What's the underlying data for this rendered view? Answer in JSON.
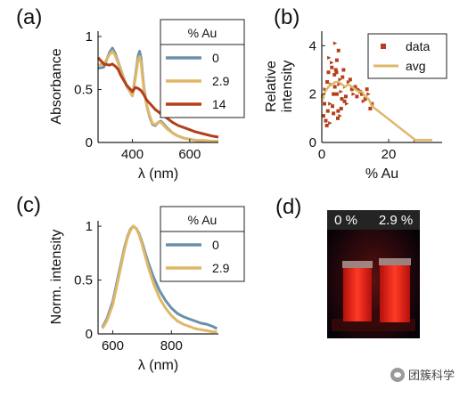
{
  "chart_data": [
    {
      "panel": "(a)",
      "type": "line",
      "xlabel": "λ (nm)",
      "ylabel": "Absorbance",
      "xlim": [
        280,
        700
      ],
      "ylim": [
        0,
        1.05
      ],
      "xticks": [
        400,
        600
      ],
      "yticks": [
        0,
        0.5,
        1
      ],
      "legend": {
        "title": "% Au",
        "placement": "top-right"
      },
      "series": [
        {
          "name": "0",
          "color": "#6a90ab",
          "x": [
            280,
            300,
            320,
            330,
            340,
            350,
            360,
            380,
            400,
            410,
            420,
            425,
            430,
            440,
            450,
            460,
            470,
            480,
            490,
            500,
            510,
            520,
            540,
            560,
            580,
            600,
            620,
            650,
            680,
            700
          ],
          "y": [
            0.7,
            0.71,
            0.85,
            0.89,
            0.84,
            0.76,
            0.68,
            0.53,
            0.44,
            0.62,
            0.82,
            0.86,
            0.8,
            0.52,
            0.35,
            0.24,
            0.17,
            0.16,
            0.19,
            0.2,
            0.17,
            0.14,
            0.09,
            0.06,
            0.04,
            0.03,
            0.02,
            0.01,
            0.01,
            0.01
          ]
        },
        {
          "name": "2.9",
          "color": "#e0b767",
          "x": [
            280,
            300,
            320,
            330,
            340,
            350,
            360,
            380,
            400,
            410,
            420,
            425,
            430,
            440,
            450,
            460,
            470,
            480,
            490,
            500,
            510,
            520,
            540,
            560,
            580,
            600,
            620,
            650,
            680,
            700
          ],
          "y": [
            0.73,
            0.74,
            0.83,
            0.86,
            0.82,
            0.75,
            0.67,
            0.53,
            0.44,
            0.6,
            0.78,
            0.81,
            0.76,
            0.5,
            0.35,
            0.25,
            0.18,
            0.17,
            0.19,
            0.19,
            0.16,
            0.13,
            0.09,
            0.06,
            0.04,
            0.03,
            0.02,
            0.02,
            0.01,
            0.01
          ]
        },
        {
          "name": "14",
          "color": "#b2401b",
          "x": [
            280,
            300,
            320,
            330,
            340,
            350,
            360,
            380,
            400,
            410,
            420,
            425,
            430,
            440,
            450,
            460,
            470,
            480,
            490,
            500,
            510,
            520,
            540,
            560,
            580,
            600,
            620,
            650,
            680,
            700
          ],
          "y": [
            0.8,
            0.74,
            0.73,
            0.74,
            0.72,
            0.69,
            0.63,
            0.54,
            0.48,
            0.52,
            0.51,
            0.5,
            0.49,
            0.45,
            0.4,
            0.37,
            0.34,
            0.31,
            0.29,
            0.27,
            0.25,
            0.23,
            0.19,
            0.16,
            0.14,
            0.12,
            0.1,
            0.08,
            0.06,
            0.05
          ]
        }
      ]
    },
    {
      "panel": "(b)",
      "type": "scatter",
      "xlabel": "% Au",
      "ylabel": "Relative intensity",
      "xlim": [
        0,
        36
      ],
      "ylim": [
        0,
        4.6
      ],
      "xticks": [
        0,
        20
      ],
      "yticks": [
        0,
        2,
        4
      ],
      "legend": {
        "placement": "top-right",
        "entries": [
          "data",
          "avg"
        ]
      },
      "series": [
        {
          "name": "data",
          "marker": "square",
          "color": "#b2401b",
          "x": [
            0.5,
            1.0,
            1.5,
            2.0,
            2.5,
            3.0,
            3.5,
            4.0,
            4.5,
            5.0,
            5.5,
            6.0,
            6.5,
            7.0,
            0.8,
            1.8,
            2.8,
            3.8,
            4.8,
            5.8,
            6.8,
            1.2,
            2.2,
            3.2,
            4.2,
            5.2,
            6.2,
            7.2,
            2.5,
            3.5,
            4.5,
            5.5,
            0.3,
            1.6,
            3.0,
            4.4,
            5.8,
            8.0,
            9.0,
            10.0,
            11.0,
            12.0,
            13.0,
            14.0,
            15.0,
            8.5,
            9.5,
            10.5,
            11.5,
            12.5,
            13.5,
            14.5,
            7.5,
            3.9,
            4.9,
            28.0
          ],
          "y": [
            1.1,
            2.2,
            0.7,
            2.9,
            1.6,
            3.1,
            2.0,
            4.1,
            3.4,
            3.8,
            2.6,
            1.8,
            3.0,
            2.3,
            1.6,
            1.3,
            2.4,
            2.8,
            1.0,
            2.1,
            1.7,
            0.9,
            3.5,
            1.5,
            3.0,
            2.4,
            2.7,
            1.9,
            0.8,
            1.2,
            2.0,
            1.1,
            1.9,
            2.5,
            3.3,
            2.9,
            1.4,
            2.5,
            2.2,
            2.3,
            2.2,
            2.0,
            1.8,
            2.0,
            1.6,
            2.6,
            2.0,
            1.9,
            2.1,
            1.7,
            2.2,
            1.4,
            1.6,
            2.3,
            1.3,
            0.1
          ]
        },
        {
          "name": "avg",
          "color": "#e0b767",
          "x": [
            0,
            1,
            2,
            3,
            4,
            5,
            6,
            7,
            8,
            9,
            10,
            11,
            12,
            13,
            14,
            15,
            28,
            30,
            33
          ],
          "y": [
            1.7,
            2.1,
            2.3,
            2.4,
            2.5,
            2.5,
            2.4,
            2.3,
            2.4,
            2.3,
            2.2,
            2.1,
            2.1,
            1.9,
            1.8,
            1.5,
            0.1,
            0.1,
            0.1
          ]
        }
      ]
    },
    {
      "panel": "(c)",
      "type": "line",
      "xlabel": "λ (nm)",
      "ylabel": "Norm. intensity",
      "xlim": [
        550,
        960
      ],
      "ylim": [
        0,
        1.05
      ],
      "xticks": [
        600,
        800
      ],
      "yticks": [
        0,
        0.5,
        1
      ],
      "legend": {
        "title": "% Au",
        "placement": "top-right"
      },
      "series": [
        {
          "name": "0",
          "color": "#6a90ab",
          "x": [
            565,
            580,
            600,
            620,
            640,
            650,
            660,
            670,
            680,
            690,
            700,
            720,
            740,
            760,
            780,
            800,
            820,
            840,
            860,
            880,
            900,
            920,
            940,
            955
          ],
          "y": [
            0.06,
            0.14,
            0.3,
            0.55,
            0.8,
            0.9,
            0.97,
            1.0,
            0.98,
            0.93,
            0.85,
            0.67,
            0.52,
            0.4,
            0.31,
            0.24,
            0.19,
            0.16,
            0.14,
            0.12,
            0.1,
            0.09,
            0.07,
            0.05
          ]
        },
        {
          "name": "2.9",
          "color": "#e0b767",
          "x": [
            565,
            580,
            600,
            620,
            640,
            650,
            660,
            670,
            680,
            690,
            700,
            720,
            740,
            760,
            780,
            800,
            820,
            840,
            860,
            880,
            900,
            920,
            940,
            955
          ],
          "y": [
            0.05,
            0.12,
            0.27,
            0.52,
            0.78,
            0.89,
            0.96,
            1.0,
            0.98,
            0.92,
            0.83,
            0.63,
            0.46,
            0.33,
            0.24,
            0.17,
            0.12,
            0.09,
            0.07,
            0.05,
            0.04,
            0.03,
            0.02,
            0.02
          ]
        }
      ]
    }
  ],
  "panel_d": {
    "letter": "(d)",
    "labels": [
      "0 %",
      "2.9 %"
    ]
  },
  "watermark": {
    "text": "团簇科学"
  }
}
